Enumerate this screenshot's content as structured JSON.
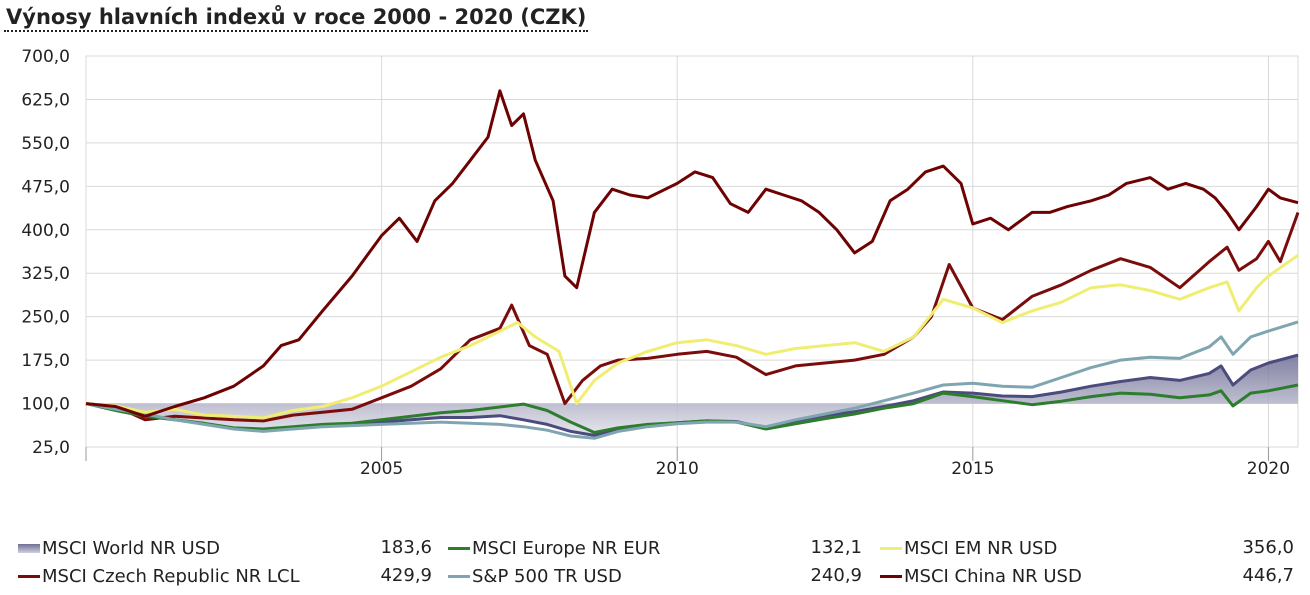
{
  "chart_data": {
    "type": "line",
    "title": "Výnosy hlavních indexů v roce 2000 - 2020 (CZK)",
    "xlabel": "",
    "ylabel": "",
    "xlim": [
      2000.0,
      2020.5
    ],
    "ylim": [
      25.0,
      700.0
    ],
    "baseline": 100.0,
    "y_ticks": [
      "700,0",
      "625,0",
      "550,0",
      "475,0",
      "400,0",
      "325,0",
      "250,0",
      "175,0",
      "100,0",
      "25,0"
    ],
    "y_tick_values": [
      700,
      625,
      550,
      475,
      400,
      325,
      250,
      175,
      100,
      25
    ],
    "x_ticks": [
      "2005",
      "2010",
      "2015",
      "2020"
    ],
    "x_tick_values": [
      2005,
      2010,
      2015,
      2020
    ],
    "grid": true,
    "legend_position": "bottom",
    "series": [
      {
        "name": "MSCI World NR USD",
        "final": "183,6",
        "color": "#4b4b7d",
        "style": "area",
        "x": [
          2000.0,
          2000.5,
          2001.0,
          2001.5,
          2002.0,
          2002.5,
          2003.0,
          2003.5,
          2004.0,
          2004.5,
          2005.0,
          2005.5,
          2006.0,
          2006.5,
          2007.0,
          2007.4,
          2007.8,
          2008.2,
          2008.6,
          2009.0,
          2009.5,
          2010.0,
          2010.5,
          2011.0,
          2011.5,
          2012.0,
          2012.5,
          2013.0,
          2013.5,
          2014.0,
          2014.5,
          2015.0,
          2015.5,
          2016.0,
          2016.5,
          2017.0,
          2017.5,
          2018.0,
          2018.5,
          2019.0,
          2019.2,
          2019.4,
          2019.7,
          2020.0,
          2020.5
        ],
        "y": [
          100,
          92,
          80,
          72,
          65,
          57,
          55,
          58,
          63,
          65,
          68,
          72,
          76,
          76,
          79,
          72,
          64,
          52,
          45,
          56,
          63,
          67,
          70,
          69,
          58,
          70,
          79,
          86,
          95,
          105,
          120,
          118,
          113,
          112,
          120,
          130,
          138,
          145,
          140,
          152,
          165,
          132,
          158,
          170,
          183.6
        ]
      },
      {
        "name": "MSCI Czech Republic NR LCL",
        "final": "429,9",
        "color": "#7a0c0c",
        "style": "line",
        "x": [
          2000.0,
          2000.5,
          2001.0,
          2001.5,
          2002.0,
          2002.5,
          2003.0,
          2003.5,
          2004.0,
          2004.5,
          2005.0,
          2005.5,
          2006.0,
          2006.5,
          2007.0,
          2007.2,
          2007.5,
          2007.8,
          2008.1,
          2008.4,
          2008.7,
          2009.0,
          2009.5,
          2010.0,
          2010.5,
          2011.0,
          2011.5,
          2012.0,
          2012.5,
          2013.0,
          2013.5,
          2014.0,
          2014.3,
          2014.6,
          2015.0,
          2015.5,
          2016.0,
          2016.5,
          2017.0,
          2017.5,
          2018.0,
          2018.5,
          2019.0,
          2019.3,
          2019.5,
          2019.8,
          2020.0,
          2020.2,
          2020.5
        ],
        "y": [
          100,
          95,
          72,
          78,
          75,
          72,
          70,
          80,
          85,
          90,
          110,
          130,
          160,
          210,
          230,
          270,
          200,
          185,
          100,
          140,
          165,
          175,
          178,
          185,
          190,
          180,
          150,
          165,
          170,
          175,
          185,
          215,
          250,
          340,
          265,
          245,
          285,
          305,
          330,
          350,
          335,
          300,
          345,
          370,
          330,
          350,
          380,
          345,
          429.9
        ]
      },
      {
        "name": "MSCI Europe NR EUR",
        "final": "132,1",
        "color": "#2e7d2e",
        "style": "line",
        "x": [
          2000.0,
          2000.5,
          2001.0,
          2001.5,
          2002.0,
          2002.5,
          2003.0,
          2003.5,
          2004.0,
          2004.5,
          2005.0,
          2005.5,
          2006.0,
          2006.5,
          2007.0,
          2007.4,
          2007.8,
          2008.2,
          2008.6,
          2009.0,
          2009.5,
          2010.0,
          2010.5,
          2011.0,
          2011.5,
          2012.0,
          2012.5,
          2013.0,
          2013.5,
          2014.0,
          2014.5,
          2015.0,
          2015.5,
          2016.0,
          2016.5,
          2017.0,
          2017.5,
          2018.0,
          2018.5,
          2019.0,
          2019.2,
          2019.4,
          2019.7,
          2020.0,
          2020.5
        ],
        "y": [
          100,
          88,
          78,
          72,
          66,
          58,
          56,
          60,
          64,
          66,
          72,
          78,
          84,
          88,
          94,
          99,
          88,
          68,
          50,
          58,
          64,
          67,
          70,
          68,
          56,
          65,
          74,
          82,
          92,
          100,
          118,
          112,
          105,
          98,
          104,
          112,
          118,
          116,
          110,
          115,
          122,
          96,
          118,
          122,
          132.1
        ]
      },
      {
        "name": "S&P 500 TR USD",
        "final": "240,9",
        "color": "#7fa6b0",
        "style": "line",
        "x": [
          2000.0,
          2000.5,
          2001.0,
          2001.5,
          2002.0,
          2002.5,
          2003.0,
          2003.5,
          2004.0,
          2004.5,
          2005.0,
          2005.5,
          2006.0,
          2006.5,
          2007.0,
          2007.4,
          2007.8,
          2008.2,
          2008.6,
          2009.0,
          2009.5,
          2010.0,
          2010.5,
          2011.0,
          2011.5,
          2012.0,
          2012.5,
          2013.0,
          2013.5,
          2014.0,
          2014.5,
          2015.0,
          2015.5,
          2016.0,
          2016.5,
          2017.0,
          2017.5,
          2018.0,
          2018.5,
          2019.0,
          2019.2,
          2019.4,
          2019.7,
          2020.0,
          2020.5
        ],
        "y": [
          100,
          90,
          82,
          72,
          64,
          56,
          52,
          56,
          60,
          62,
          64,
          66,
          68,
          66,
          64,
          60,
          54,
          44,
          40,
          52,
          60,
          65,
          68,
          68,
          60,
          72,
          82,
          92,
          105,
          118,
          132,
          135,
          130,
          128,
          145,
          162,
          175,
          180,
          178,
          198,
          215,
          185,
          215,
          225,
          240.9
        ]
      },
      {
        "name": "MSCI EM NR USD",
        "final": "356,0",
        "color": "#f0ee72",
        "style": "line",
        "x": [
          2000.0,
          2000.5,
          2001.0,
          2001.5,
          2002.0,
          2002.5,
          2003.0,
          2003.5,
          2004.0,
          2004.5,
          2005.0,
          2005.5,
          2006.0,
          2006.5,
          2007.0,
          2007.3,
          2007.6,
          2008.0,
          2008.3,
          2008.6,
          2009.0,
          2009.5,
          2010.0,
          2010.5,
          2011.0,
          2011.5,
          2012.0,
          2012.5,
          2013.0,
          2013.5,
          2014.0,
          2014.5,
          2015.0,
          2015.5,
          2016.0,
          2016.5,
          2017.0,
          2017.5,
          2018.0,
          2018.5,
          2019.0,
          2019.3,
          2019.5,
          2019.8,
          2020.0,
          2020.5
        ],
        "y": [
          100,
          96,
          85,
          90,
          80,
          78,
          75,
          88,
          95,
          110,
          130,
          155,
          180,
          200,
          225,
          240,
          215,
          190,
          100,
          140,
          170,
          190,
          205,
          210,
          200,
          185,
          195,
          200,
          205,
          190,
          215,
          280,
          265,
          240,
          260,
          275,
          300,
          305,
          295,
          280,
          300,
          310,
          260,
          300,
          320,
          356.0
        ]
      },
      {
        "name": "MSCI China NR USD",
        "final": "446,7",
        "color": "#6e0202",
        "style": "line",
        "x": [
          2000.0,
          2000.5,
          2001.0,
          2001.5,
          2002.0,
          2002.5,
          2003.0,
          2003.3,
          2003.6,
          2004.0,
          2004.5,
          2005.0,
          2005.3,
          2005.6,
          2005.9,
          2006.2,
          2006.5,
          2006.8,
          2007.0,
          2007.2,
          2007.4,
          2007.6,
          2007.9,
          2008.1,
          2008.3,
          2008.6,
          2008.9,
          2009.2,
          2009.5,
          2009.8,
          2010.0,
          2010.3,
          2010.6,
          2010.9,
          2011.2,
          2011.5,
          2011.8,
          2012.1,
          2012.4,
          2012.7,
          2013.0,
          2013.3,
          2013.6,
          2013.9,
          2014.2,
          2014.5,
          2014.8,
          2015.0,
          2015.3,
          2015.6,
          2016.0,
          2016.3,
          2016.6,
          2017.0,
          2017.3,
          2017.6,
          2018.0,
          2018.3,
          2018.6,
          2018.9,
          2019.1,
          2019.3,
          2019.5,
          2019.8,
          2020.0,
          2020.2,
          2020.5
        ],
        "y": [
          100,
          95,
          78,
          95,
          110,
          130,
          165,
          200,
          210,
          260,
          320,
          390,
          420,
          380,
          450,
          480,
          520,
          560,
          640,
          580,
          600,
          520,
          450,
          320,
          300,
          430,
          470,
          460,
          455,
          470,
          480,
          500,
          490,
          445,
          430,
          470,
          460,
          450,
          430,
          400,
          360,
          380,
          450,
          470,
          500,
          510,
          480,
          410,
          420,
          400,
          430,
          430,
          440,
          450,
          460,
          480,
          490,
          470,
          480,
          470,
          455,
          430,
          400,
          440,
          470,
          455,
          446.7
        ]
      }
    ]
  }
}
